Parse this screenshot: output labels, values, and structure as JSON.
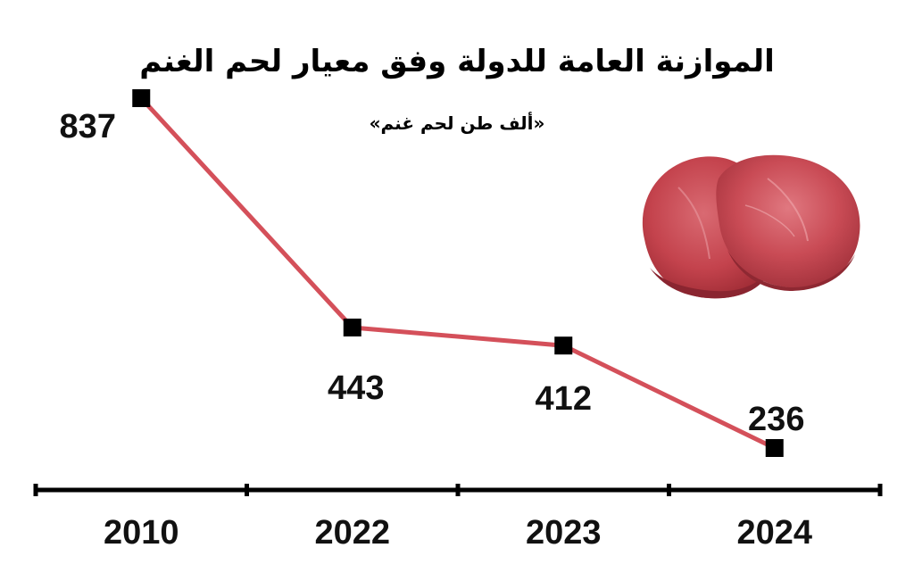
{
  "chart_data": {
    "type": "line",
    "title": "الموازنة العامة للدولة وفق معيار لحم الغنم",
    "subtitle": "«ألف طن لحم غنم»",
    "categories": [
      "2010",
      "2022",
      "2023",
      "2024"
    ],
    "values": [
      837,
      443,
      412,
      236
    ],
    "value_labels": [
      "837",
      "443",
      "412",
      "236"
    ],
    "line_color": "#d4505a",
    "marker_color": "#000000",
    "axis_color": "#000000",
    "grid": false,
    "legend": "none"
  },
  "decoration": {
    "image_icon": "raw-meat-steaks"
  }
}
